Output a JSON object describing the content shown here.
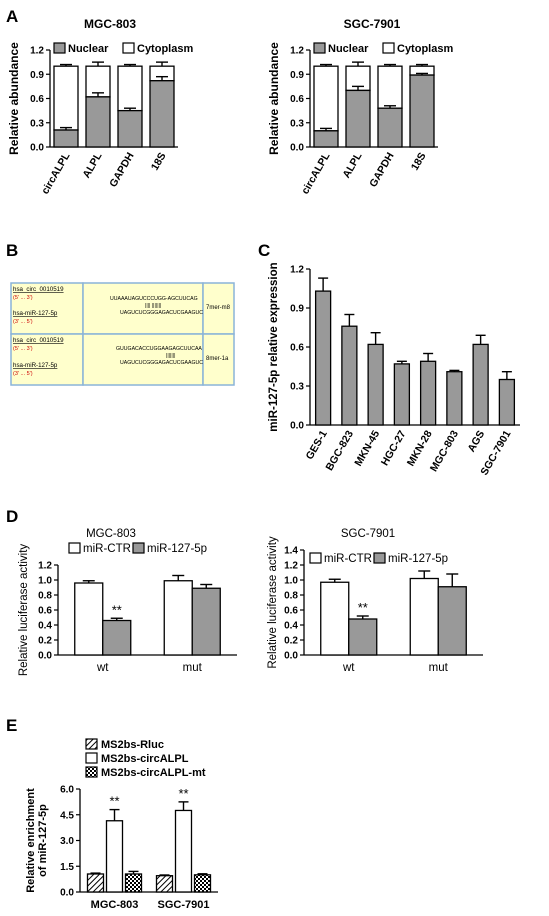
{
  "colors": {
    "gray": "#999999",
    "white": "#ffffff",
    "black": "#000000",
    "box_fill": "#ffffcc",
    "box_border": "#8ab4d8",
    "red": "#cc0000"
  },
  "panels": {
    "A": {
      "letter": "A",
      "ylabel": "Relative abundance",
      "ticks": [
        "0.0",
        "0.3",
        "0.6",
        "0.9",
        "1.2"
      ],
      "legend": [
        "Nuclear",
        "Cytoplasm"
      ],
      "categories": [
        "circALPL",
        "ALPL",
        "GAPDH",
        "18S"
      ]
    },
    "B": {
      "letter": "B",
      "rows": [
        {
          "circ_label": "hsa_circ_0010519",
          "circ_suffix": "(5' ... 3')",
          "mir_label": "hsa-miR-127-5p",
          "mir_suffix": "(3' ... 5')",
          "seq_top": "UUAAAUAGUCCCUGG-AGCUUCAG",
          "pairs": "||||   |||||||",
          "seq_bot": "UAGUCUCGGGAGACUCGAAGUC",
          "site": "7mer-m8"
        },
        {
          "circ_label": "hsa_circ_0010519",
          "circ_suffix": "(5' ... 3')",
          "mir_label": "hsa-miR-127-5p",
          "mir_suffix": "(3' ... 5')",
          "seq_top": "GUUGACACCUGGAAGAGCUUCAA",
          "pairs": "|||||||",
          "seq_bot": "UAGUCUCGGGAGACUCGAAGUC",
          "site": "8mer-1a"
        }
      ]
    },
    "C": {
      "letter": "C",
      "ylabel": "miR-127-5p relative expression",
      "ticks": [
        "0.0",
        "0.3",
        "0.6",
        "0.9",
        "1.2"
      ]
    },
    "D": {
      "letter": "D",
      "ylabel": "Relative luciferase activity",
      "legend": [
        "miR-CTR",
        "miR-127-5p"
      ],
      "categories": [
        "wt",
        "mut"
      ],
      "ticks_left": [
        "0.0",
        "0.2",
        "0.4",
        "0.6",
        "0.8",
        "1.0",
        "1.2"
      ],
      "ticks_right": [
        "0.0",
        "0.2",
        "0.4",
        "0.6",
        "0.8",
        "1.0",
        "1.2",
        "1.4"
      ],
      "sig": "**"
    },
    "E": {
      "letter": "E",
      "ylabel_line1": "Relative enrichment",
      "ylabel_line2": "of miR-127-5p",
      "legend": [
        "MS2bs-Rluc",
        "MS2bs-circALPL",
        "MS2bs-circALPL-mt"
      ],
      "ticks": [
        "0.0",
        "1.5",
        "3.0",
        "4.5",
        "6.0"
      ],
      "sig": "**"
    }
  },
  "chart_data": [
    {
      "type": "bar",
      "title": "MGC-803",
      "categories": [
        "circALPL",
        "ALPL",
        "GAPDH",
        "18S"
      ],
      "series": [
        {
          "name": "Nuclear",
          "values": [
            0.21,
            0.62,
            0.45,
            0.82
          ],
          "errors": [
            0.03,
            0.05,
            0.03,
            0.05
          ]
        },
        {
          "name": "Cytoplasm",
          "values": [
            0.79,
            0.38,
            0.55,
            0.18
          ],
          "errors": [
            0.02,
            0.05,
            0.02,
            0.05
          ]
        }
      ],
      "stacked": true,
      "ylabel": "Relative abundance",
      "ylim": [
        0,
        1.2
      ]
    },
    {
      "type": "bar",
      "title": "SGC-7901",
      "categories": [
        "circALPL",
        "ALPL",
        "GAPDH",
        "18S"
      ],
      "series": [
        {
          "name": "Nuclear",
          "values": [
            0.2,
            0.7,
            0.48,
            0.89
          ],
          "errors": [
            0.03,
            0.05,
            0.03,
            0.02
          ]
        },
        {
          "name": "Cytoplasm",
          "values": [
            0.8,
            0.3,
            0.52,
            0.11
          ],
          "errors": [
            0.02,
            0.05,
            0.02,
            0.02
          ]
        }
      ],
      "stacked": true,
      "ylabel": "Relative abundance",
      "ylim": [
        0,
        1.2
      ]
    },
    {
      "type": "bar",
      "categories": [
        "GES-1",
        "BGC-823",
        "MKN-45",
        "HGC-27",
        "MKN-28",
        "MGC-803",
        "AGS",
        "SGC-7901"
      ],
      "values": [
        1.03,
        0.76,
        0.62,
        0.47,
        0.49,
        0.41,
        0.62,
        0.35
      ],
      "errors": [
        0.1,
        0.09,
        0.09,
        0.02,
        0.06,
        0.01,
        0.07,
        0.06
      ],
      "ylabel": "miR-127-5p relative expression",
      "ylim": [
        0,
        1.2
      ]
    },
    {
      "type": "bar",
      "title": "MGC-803",
      "categories": [
        "wt",
        "mut"
      ],
      "series": [
        {
          "name": "miR-CTR",
          "values": [
            0.96,
            0.99
          ],
          "errors": [
            0.03,
            0.07
          ]
        },
        {
          "name": "miR-127-5p",
          "values": [
            0.46,
            0.89
          ],
          "errors": [
            0.03,
            0.05
          ]
        }
      ],
      "ylabel": "Relative luciferase activity",
      "ylim": [
        0,
        1.2
      ]
    },
    {
      "type": "bar",
      "title": "SGC-7901",
      "categories": [
        "wt",
        "mut"
      ],
      "series": [
        {
          "name": "miR-CTR",
          "values": [
            0.97,
            1.02
          ],
          "errors": [
            0.04,
            0.1
          ]
        },
        {
          "name": "miR-127-5p",
          "values": [
            0.48,
            0.91
          ],
          "errors": [
            0.04,
            0.17
          ]
        }
      ],
      "ylabel": "Relative luciferase activity",
      "ylim": [
        0,
        1.4
      ]
    },
    {
      "type": "bar",
      "categories": [
        "MGC-803",
        "SGC-7901"
      ],
      "series": [
        {
          "name": "MS2bs-Rluc",
          "values": [
            1.05,
            0.95
          ],
          "errors": [
            0.05,
            0.04
          ]
        },
        {
          "name": "MS2bs-circALPL",
          "values": [
            4.15,
            4.75
          ],
          "errors": [
            0.65,
            0.5
          ]
        },
        {
          "name": "MS2bs-circALPL-mt",
          "values": [
            1.05,
            1.0
          ],
          "errors": [
            0.15,
            0.06
          ]
        }
      ],
      "ylabel": "Relative enrichment of miR-127-5p",
      "ylim": [
        0,
        6.0
      ]
    }
  ]
}
